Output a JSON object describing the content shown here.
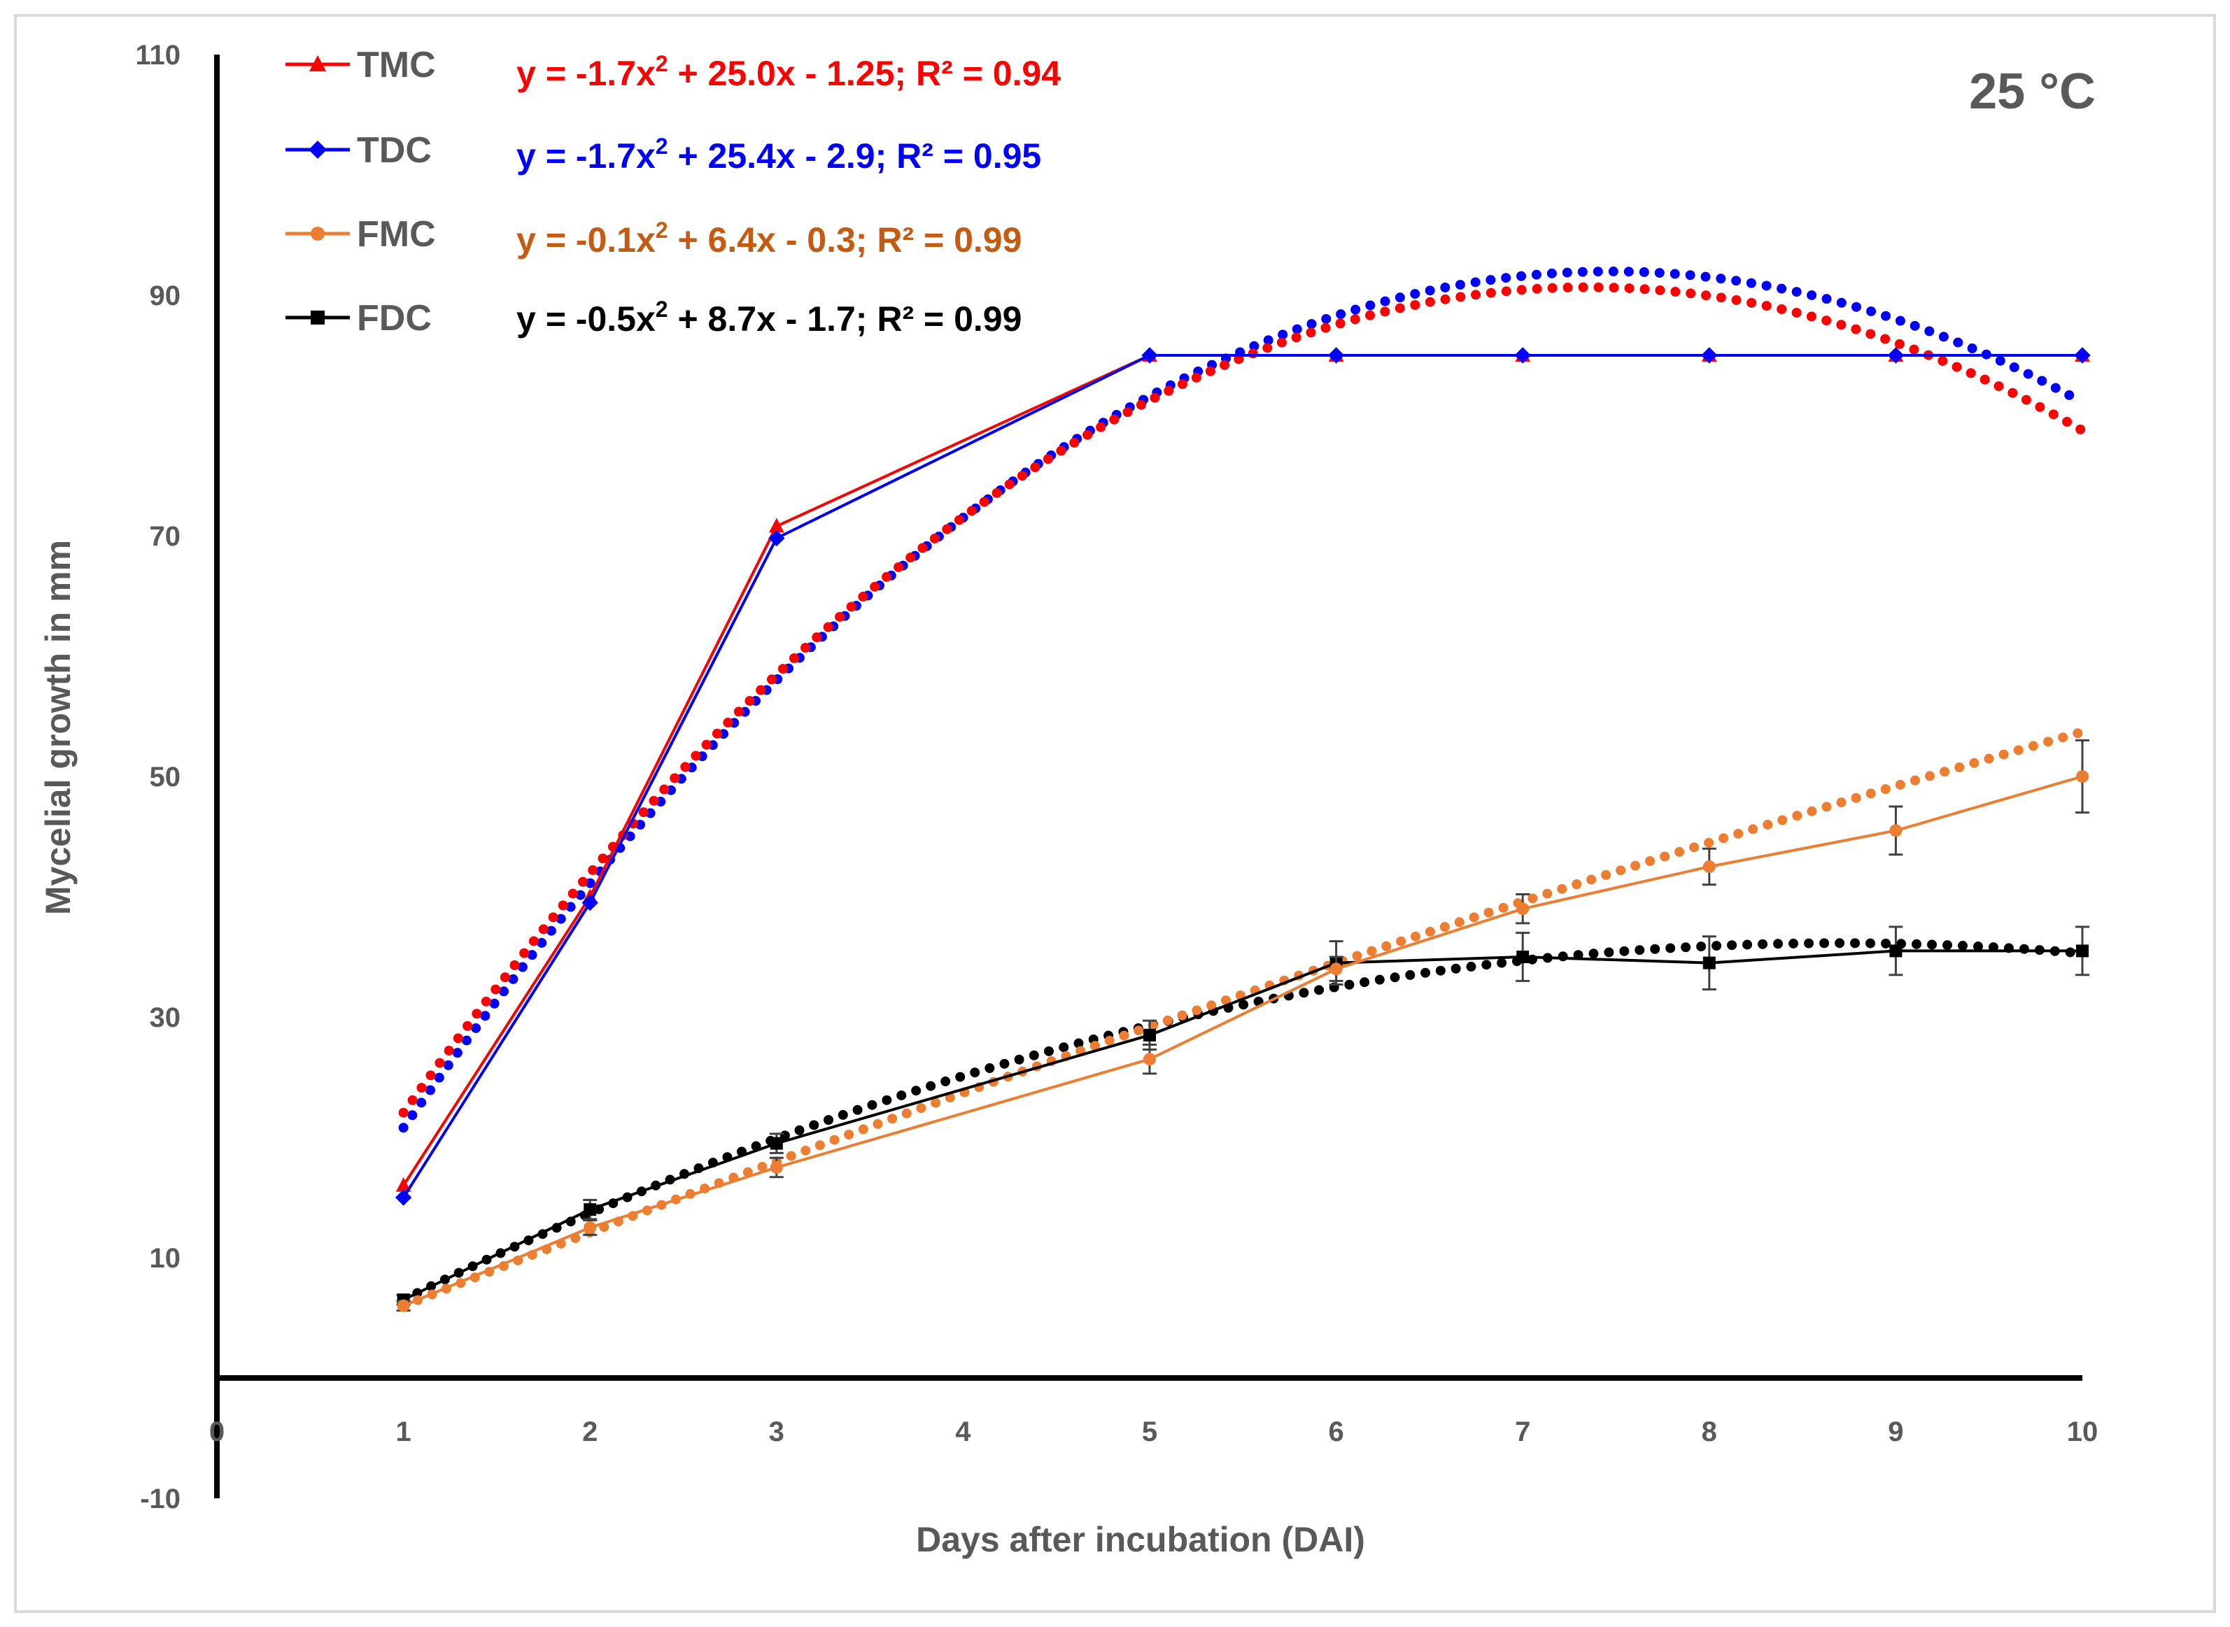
{
  "chart_data": {
    "type": "line",
    "title": "",
    "temperature_label": "25 °C",
    "xlabel": "Days after incubation (DAI)",
    "ylabel": "Mycelial growth in mm",
    "x_ticks": [
      "0",
      "1",
      "2",
      "3",
      "4",
      "5",
      "6",
      "7",
      "8",
      "9",
      "10"
    ],
    "y_ticks": [
      "-10",
      "10",
      "30",
      "50",
      "70",
      "90",
      "110"
    ],
    "xlim": [
      0,
      10
    ],
    "ylim": [
      -10,
      110
    ],
    "grid": false,
    "legend_position": "top-left",
    "series": [
      {
        "name": "TMC",
        "color": "#ff0000",
        "marker": "triangle",
        "x": [
          1,
          2,
          3,
          5,
          6,
          7,
          8,
          9,
          10
        ],
        "values": [
          16,
          40,
          70.8,
          85,
          85,
          85,
          85,
          85,
          85
        ],
        "trendline": {
          "kind": "polynomial-2",
          "equation": {
            "y": "y = -1.7x",
            "sup": "2",
            "rest": " + 25.0x - 1.25; R² = 0.94"
          },
          "coefficients": [
            -1.7,
            25.0,
            -1.25
          ]
        }
      },
      {
        "name": "TDC",
        "color": "#0000ff",
        "marker": "diamond",
        "x": [
          1,
          2,
          3,
          5,
          6,
          7,
          8,
          9,
          10
        ],
        "values": [
          15,
          39.5,
          69.8,
          85,
          85,
          85,
          85,
          85,
          85
        ],
        "trendline": {
          "kind": "polynomial-2",
          "equation": {
            "y": "y = -1.7x",
            "sup": "2",
            "rest": " + 25.4x - 2.9; R² = 0.95"
          },
          "coefficients": [
            -1.7,
            25.4,
            -2.9
          ]
        }
      },
      {
        "name": "FMC",
        "color": "#ed7d31",
        "marker": "circle",
        "x": [
          1,
          2,
          3,
          5,
          6,
          7,
          8,
          9,
          10
        ],
        "values": [
          6,
          12.5,
          17.5,
          26.5,
          34,
          39,
          42.5,
          45.5,
          50
        ],
        "errors": [
          0.4,
          0.6,
          0.8,
          1.2,
          1,
          1.2,
          1.5,
          2,
          3
        ],
        "trendline": {
          "kind": "polynomial-2",
          "equation": {
            "y": "y = -0.1x",
            "sup": "2",
            "rest": " + 6.4x - 0.3; R² = 0.99"
          },
          "coefficients": [
            -0.1,
            6.4,
            -0.3
          ]
        }
      },
      {
        "name": "FDC",
        "color": "#000000",
        "marker": "square",
        "x": [
          1,
          2,
          3,
          5,
          6,
          7,
          8,
          9,
          10
        ],
        "values": [
          6.5,
          14,
          19.5,
          28.5,
          34.5,
          35,
          34.5,
          35.5,
          35.5
        ],
        "errors": [
          0.4,
          0.8,
          0.8,
          1.2,
          1.8,
          2,
          2.2,
          2,
          2
        ],
        "trendline": {
          "kind": "polynomial-2",
          "equation": {
            "y": "y = -0.5x",
            "sup": "2",
            "rest": " + 8.7x - 1.7; R² = 0.99"
          },
          "coefficients": [
            -0.5,
            8.7,
            -1.7
          ]
        }
      }
    ],
    "equation_colors": [
      "#ff0000",
      "#0000ff",
      "#c55a11",
      "#000000"
    ]
  }
}
